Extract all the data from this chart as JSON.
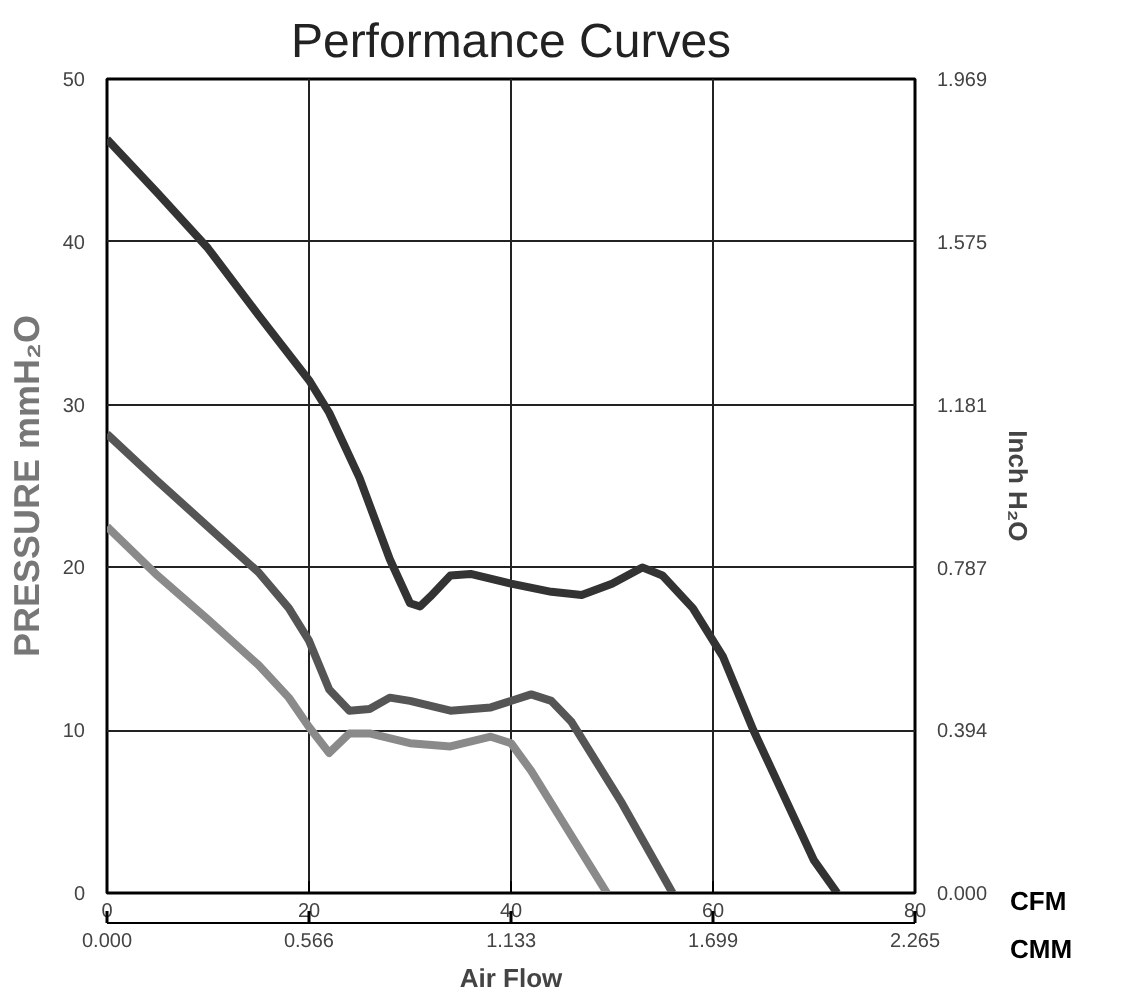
{
  "chart_data": {
    "type": "line",
    "title": "Performance Curves",
    "xlabel": "Air Flow",
    "ylabel": "PRESSURE mmH₂O",
    "y2label": "Inch H₂O",
    "x2label": "CMM",
    "annotations": [
      "CFM"
    ],
    "xlim": [
      0,
      80
    ],
    "xticks": [
      0,
      20,
      40,
      60,
      80
    ],
    "ylim": [
      0,
      50
    ],
    "yticks": [
      0,
      10,
      20,
      30,
      40,
      50
    ],
    "y2lim": [
      0,
      1.969
    ],
    "y2ticks": [
      {
        "value": 0,
        "label": "0.000"
      },
      0.394,
      0.787,
      1.181,
      1.575,
      1.969
    ],
    "x2lim": [
      0,
      2.265
    ],
    "x2ticks": [
      {
        "value": 0,
        "label": "0.000"
      },
      0.566,
      1.133,
      1.699,
      2.265
    ],
    "grid": true,
    "line_style": "solid",
    "series": [
      {
        "color": "#333333",
        "x": [
          0,
          5,
          10,
          15,
          20,
          22,
          25,
          28,
          30,
          31,
          32,
          34,
          36,
          40,
          44,
          47,
          50,
          53,
          55,
          58,
          61,
          64,
          67,
          70,
          72.3
        ],
        "values": [
          46.3,
          43,
          39.6,
          35.5,
          31.5,
          29.5,
          25.5,
          20.5,
          17.8,
          17.6,
          18.2,
          19.5,
          19.6,
          19,
          18.5,
          18.3,
          19,
          20,
          19.5,
          17.5,
          14.5,
          10,
          6,
          2,
          0
        ]
      },
      {
        "color": "#555555",
        "x": [
          0,
          5,
          10,
          15,
          18,
          20,
          22,
          24,
          26,
          28,
          30,
          34,
          38,
          42,
          44,
          46,
          48,
          51,
          54,
          56
        ],
        "values": [
          28.2,
          25.3,
          22.5,
          19.7,
          17.5,
          15.5,
          12.5,
          11.2,
          11.3,
          12,
          11.8,
          11.2,
          11.4,
          12.2,
          11.8,
          10.5,
          8.5,
          5.5,
          2.2,
          0
        ]
      },
      {
        "color": "#8a8a8a",
        "x": [
          0,
          5,
          10,
          15,
          18,
          20,
          22,
          24,
          26,
          30,
          34,
          38,
          40,
          42,
          45,
          48,
          49.5
        ],
        "values": [
          22.5,
          19.5,
          16.8,
          14,
          12,
          10.2,
          8.6,
          9.8,
          9.8,
          9.2,
          9,
          9.6,
          9.2,
          7.5,
          4.5,
          1.5,
          0
        ]
      }
    ]
  }
}
